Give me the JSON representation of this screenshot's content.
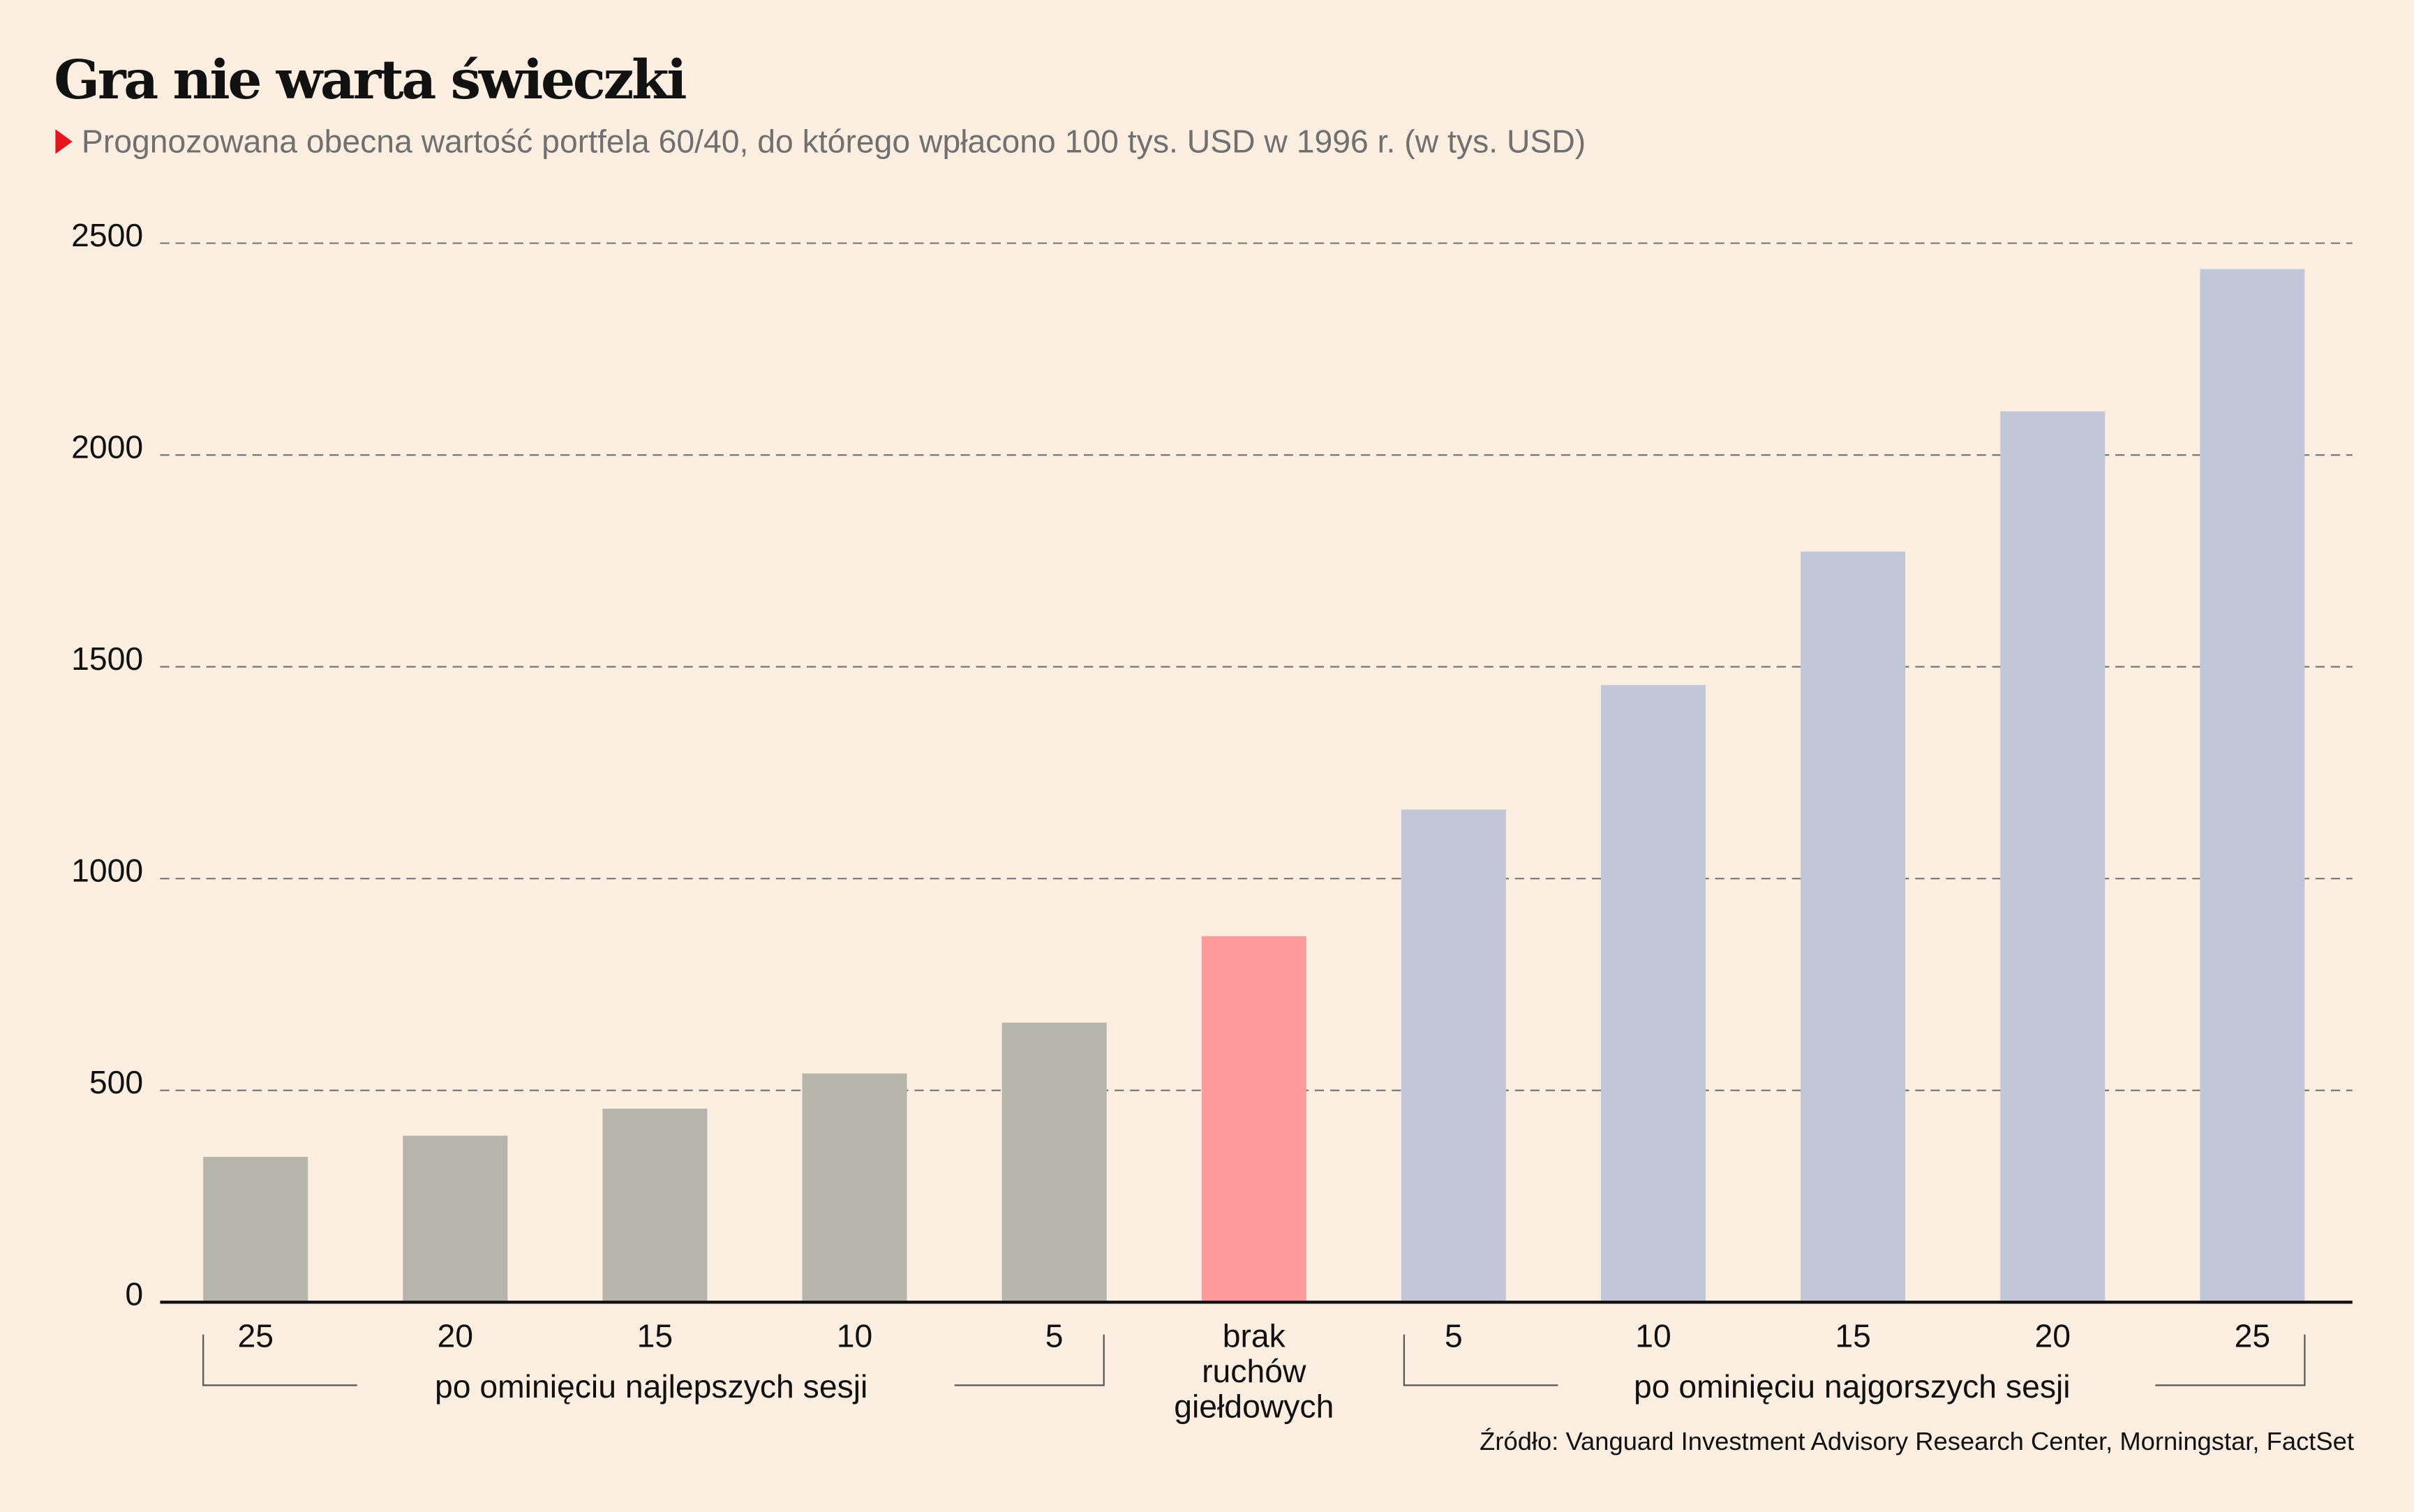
{
  "header": {
    "title": "Gra nie warta świeczki",
    "subtitle": "Prognozowana obecna wartość portfela 60/40, do którego wpłacono 100 tys. USD w 1996 r. (w tys. USD)",
    "bullet_icon": "red-triangle-icon"
  },
  "colors": {
    "background": "#fcefe2",
    "best_sessions": "#b5b5ac",
    "no_moves": "#ff9a9a",
    "worst_sessions": "#c1c7d7",
    "accent": "#e8141c"
  },
  "chart_data": {
    "type": "bar",
    "title": "Gra nie warta świeczki",
    "subtitle": "Prognozowana obecna wartość portfela 60/40, do którego wpłacono 100 tys. USD w 1996 r. (w tys. USD)",
    "xlabel": "",
    "ylabel": "",
    "ylim": [
      0,
      2500
    ],
    "yticks": [
      0,
      500,
      1000,
      1500,
      2000,
      2500
    ],
    "grid": "horizontal-dashed",
    "categories": [
      "25",
      "20",
      "15",
      "10",
      "5",
      "brak ruchów giełdowych",
      "5",
      "10",
      "15",
      "20",
      "25"
    ],
    "category_lines": [
      [
        "25"
      ],
      [
        "20"
      ],
      [
        "15"
      ],
      [
        "10"
      ],
      [
        "5"
      ],
      [
        "brak",
        "ruchów",
        "giełdowych"
      ],
      [
        "5"
      ],
      [
        "10"
      ],
      [
        "15"
      ],
      [
        "20"
      ],
      [
        "25"
      ]
    ],
    "groups": [
      "best",
      "best",
      "best",
      "best",
      "best",
      "none",
      "worst",
      "worst",
      "worst",
      "worst",
      "worst"
    ],
    "values": [
      343,
      393,
      457,
      540,
      660,
      864,
      1163,
      1457,
      1772,
      2103,
      2439
    ],
    "group_labels": {
      "best": "po ominięciu najlepszych sesji",
      "worst": "po ominięciu najgorszych sesji"
    },
    "source": "Źródło: Vanguard Investment Advisory Research Center, Morningstar, FactSet"
  }
}
